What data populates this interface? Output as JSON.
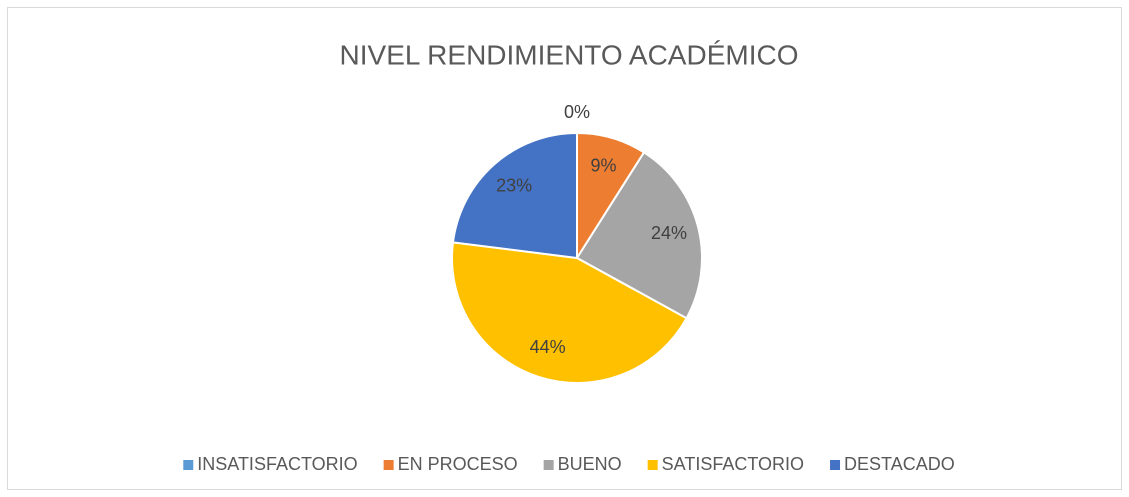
{
  "chart_data": {
    "type": "pie",
    "title": "NIVEL RENDIMIENTO ACADÉMICO",
    "categories": [
      "INSATISFACTORIO",
      "EN PROCESO",
      "BUENO",
      "SATISFACTORIO",
      "DESTACADO"
    ],
    "values": [
      0,
      9,
      24,
      44,
      23
    ],
    "value_labels": [
      "0%",
      "9%",
      "24%",
      "44%",
      "23%"
    ],
    "colors": [
      "#5b9bd5",
      "#ed7d31",
      "#a5a5a5",
      "#ffc000",
      "#4472c4"
    ],
    "legend": "bottom"
  }
}
